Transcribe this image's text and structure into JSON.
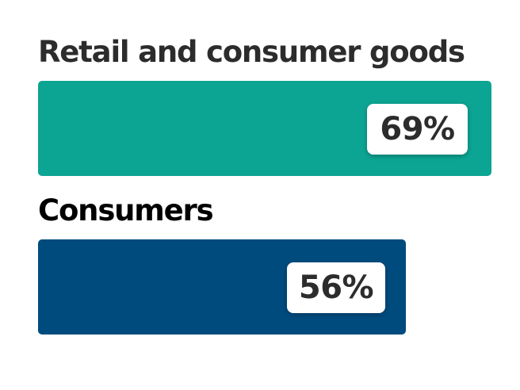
{
  "chart_data": {
    "type": "bar",
    "orientation": "horizontal",
    "categories": [
      "Retail and consumer goods",
      "Consumers"
    ],
    "values": [
      69,
      56
    ],
    "value_labels": [
      "69%",
      "56%"
    ],
    "unit": "%",
    "colors": [
      "#0ca493",
      "#004b7e"
    ],
    "label_colors": [
      "#2c2c2c",
      "#000000"
    ],
    "xlim": [
      0,
      100
    ],
    "legend": "none",
    "grid": false
  }
}
